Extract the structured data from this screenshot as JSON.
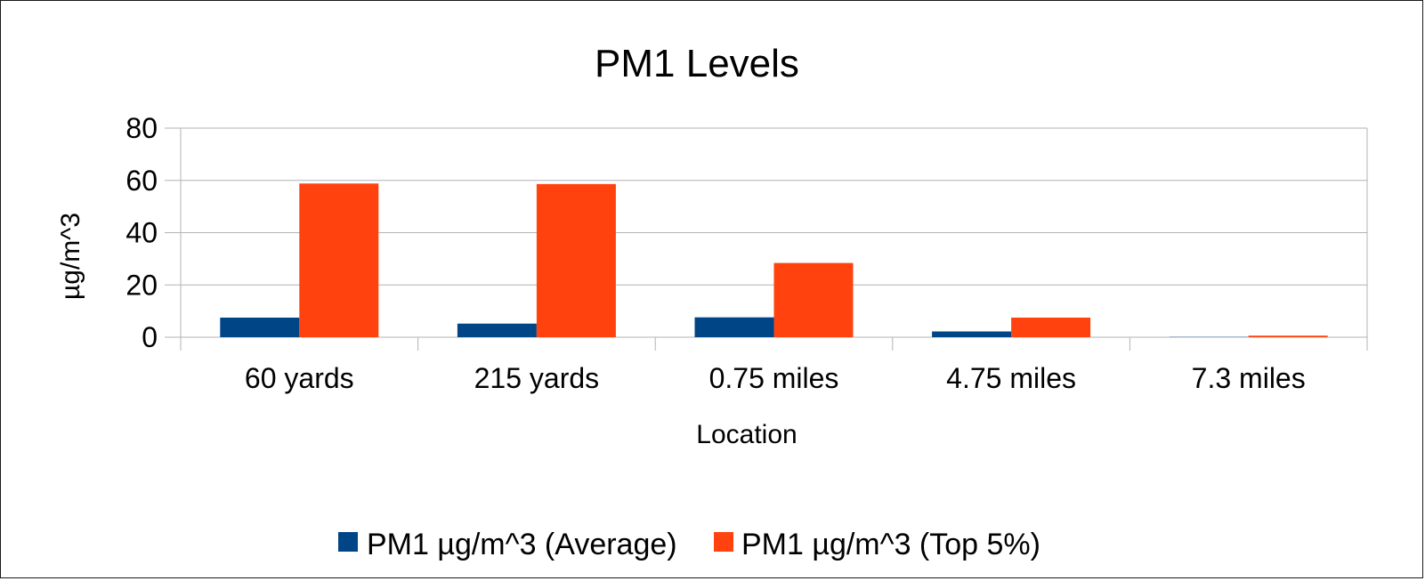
{
  "chart_data": {
    "type": "bar",
    "title": "PM1 Levels",
    "xlabel": "Location",
    "ylabel": "µg/m^3",
    "categories": [
      "60 yards",
      "215 yards",
      "0.75 miles",
      "4.75 miles",
      "7.3 miles"
    ],
    "series": [
      {
        "name": "PM1 µg/m^3 (Average)",
        "color": "#004586",
        "values": [
          7.5,
          5.2,
          7.6,
          2.2,
          0.1
        ]
      },
      {
        "name": "PM1 µg/m^3 (Top 5%)",
        "color": "#FF420E",
        "values": [
          58.8,
          58.6,
          28.4,
          7.5,
          0.6
        ]
      }
    ],
    "ylim": [
      0,
      80
    ],
    "yticks": [
      0,
      20,
      40,
      60,
      80
    ],
    "grid": true,
    "legend_position": "bottom"
  },
  "colors": {
    "gridline": "#b3b3b3",
    "axis": "#b3b3b3"
  }
}
